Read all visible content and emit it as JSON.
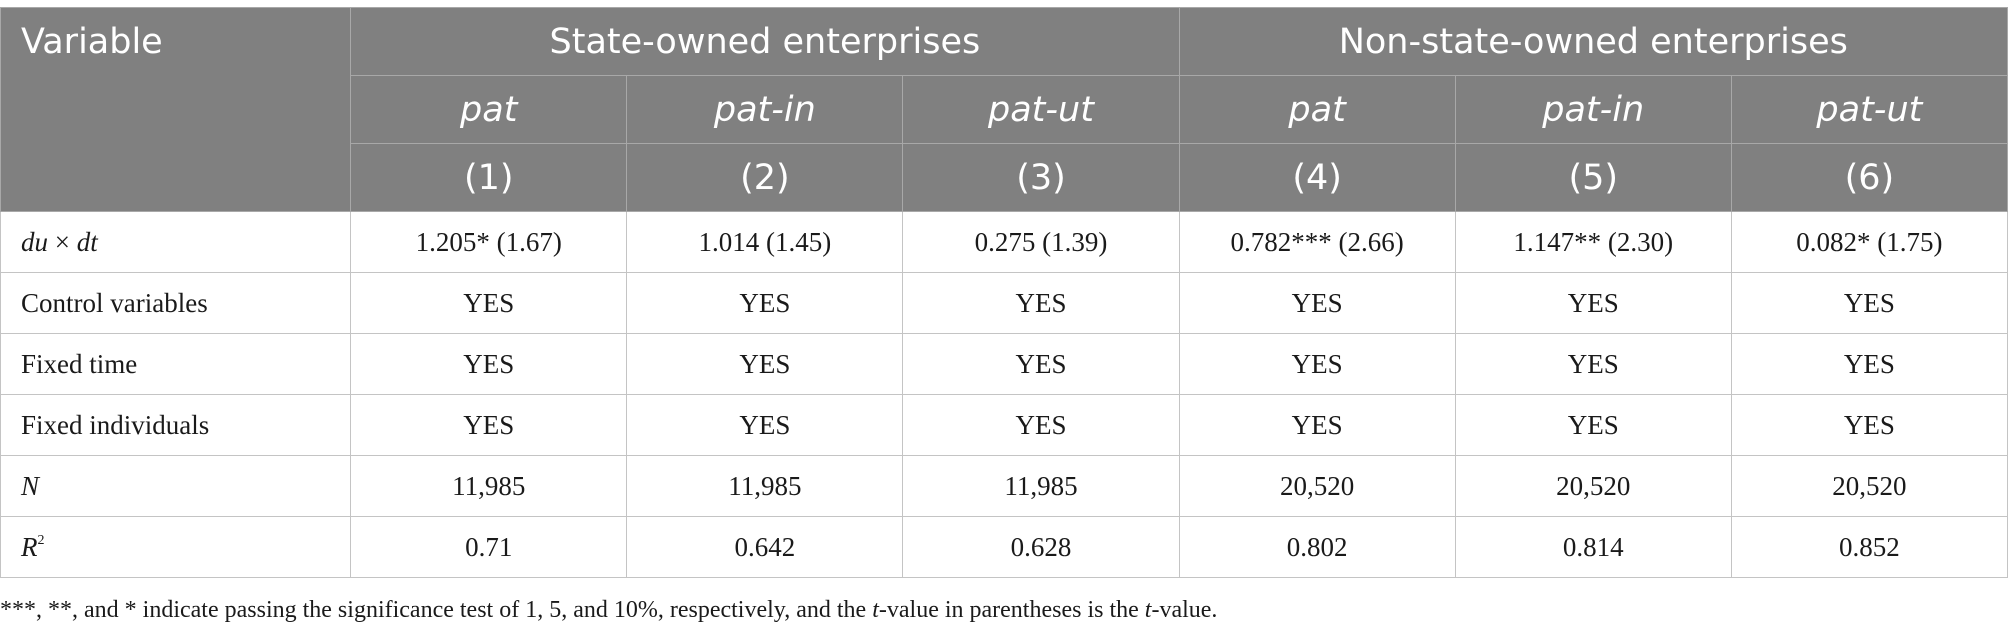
{
  "header": {
    "variable_label": "Variable",
    "groups": [
      "State-owned enterprises",
      "Non-state-owned enterprises"
    ],
    "columns": [
      "pat",
      "pat-in",
      "pat-ut",
      "pat",
      "pat-in",
      "pat-ut"
    ],
    "numbers": [
      "(1)",
      "(2)",
      "(3)",
      "(4)",
      "(5)",
      "(6)"
    ]
  },
  "rows": [
    {
      "label_a": "du",
      "label_op": " × ",
      "label_b": "dt",
      "values": [
        "1.205* (1.67)",
        "1.014 (1.45)",
        "0.275 (1.39)",
        "0.782*** (2.66)",
        "1.147** (2.30)",
        "0.082* (1.75)"
      ]
    },
    {
      "label": "Control variables",
      "values": [
        "YES",
        "YES",
        "YES",
        "YES",
        "YES",
        "YES"
      ]
    },
    {
      "label": "Fixed time",
      "values": [
        "YES",
        "YES",
        "YES",
        "YES",
        "YES",
        "YES"
      ]
    },
    {
      "label": "Fixed individuals",
      "values": [
        "YES",
        "YES",
        "YES",
        "YES",
        "YES",
        "YES"
      ]
    },
    {
      "label": "N",
      "values": [
        "11,985",
        "11,985",
        "11,985",
        "20,520",
        "20,520",
        "20,520"
      ]
    },
    {
      "label": "R",
      "label_sup": "2",
      "values": [
        "0.71",
        "0.642",
        "0.628",
        "0.802",
        "0.814",
        "0.852"
      ]
    }
  ],
  "note": {
    "part1": "***, **, and * indicate passing the significance test of 1, 5, and 10%, respectively, and the ",
    "t1": "t",
    "part2": "-value in parentheses is the ",
    "t2": "t",
    "part3": "-value."
  }
}
